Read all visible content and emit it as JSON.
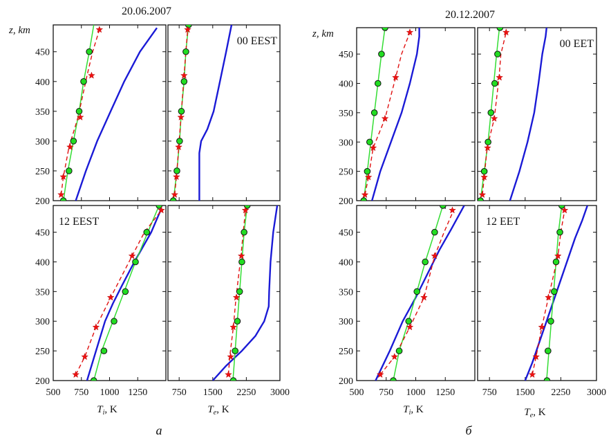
{
  "figure": {
    "left_title": "20.06.2007",
    "right_title": "20.12.2007",
    "left_label": "а",
    "right_label": "б",
    "y_axis_label": "z, km",
    "ti_label": "T",
    "ti_sub": "i",
    "te_label": "T",
    "te_sub": "e",
    "unit": ", K"
  },
  "colors": {
    "blue_curve": "#1a1ad6",
    "green_line": "#33dd33",
    "green_marker_fill": "#22dd22",
    "red_dashed": "#e01010",
    "red_star": "#ee1111"
  },
  "chart_data": [
    {
      "id": "a_ti_00",
      "type": "line",
      "panel_label": "",
      "xlim": [
        500,
        1500
      ],
      "ylim": [
        200,
        495
      ],
      "y_ticks": [
        200,
        250,
        300,
        350,
        400,
        450
      ],
      "x_ticks": [],
      "show_y_ticks": true,
      "series": [
        {
          "kind": "blue",
          "x": [
            700,
            790,
            890,
            1010,
            1130,
            1270,
            1420
          ],
          "y": [
            200,
            250,
            300,
            350,
            400,
            450,
            490
          ]
        },
        {
          "kind": "green",
          "x": [
            590,
            630,
            680,
            730,
            770,
            820,
            860
          ],
          "y": [
            200,
            250,
            300,
            350,
            400,
            450,
            495
          ]
        },
        {
          "kind": "red",
          "x": [
            570,
            590,
            640,
            720,
            800,
            850,
            910
          ],
          "y": [
            210,
            240,
            290,
            340,
            410,
            450,
            487
          ]
        },
        {
          "kind": "markers",
          "x": [
            590,
            640,
            680,
            730,
            770,
            820
          ],
          "y": [
            200,
            250,
            300,
            350,
            400,
            450
          ]
        },
        {
          "kind": "stars",
          "x": [
            570,
            590,
            650,
            740,
            840,
            910
          ],
          "y": [
            210,
            240,
            290,
            340,
            410,
            487
          ]
        }
      ]
    },
    {
      "id": "a_te_00",
      "type": "line",
      "panel_label": "00 EEST",
      "xlim": [
        500,
        3000
      ],
      "ylim": [
        200,
        495
      ],
      "y_ticks": [
        200,
        250,
        300,
        350,
        400,
        450
      ],
      "x_ticks": [],
      "show_y_ticks": false,
      "series": [
        {
          "kind": "blue",
          "x": [
            1200,
            1200,
            1200,
            1200,
            1240,
            1380,
            1520,
            1660,
            1800,
            1920
          ],
          "y": [
            200,
            230,
            260,
            280,
            300,
            320,
            350,
            400,
            450,
            495
          ]
        },
        {
          "kind": "green",
          "x": [
            620,
            700,
            760,
            800,
            860,
            900,
            960
          ],
          "y": [
            200,
            250,
            300,
            350,
            400,
            450,
            495
          ]
        },
        {
          "kind": "red",
          "x": [
            650,
            690,
            740,
            790,
            860,
            900,
            940
          ],
          "y": [
            210,
            240,
            290,
            340,
            410,
            450,
            487
          ]
        },
        {
          "kind": "markers",
          "x": [
            620,
            700,
            760,
            800,
            860,
            900,
            960
          ],
          "y": [
            200,
            250,
            300,
            350,
            400,
            450,
            495
          ]
        },
        {
          "kind": "stars",
          "x": [
            650,
            690,
            740,
            790,
            860,
            940
          ],
          "y": [
            210,
            240,
            290,
            340,
            410,
            487
          ]
        }
      ]
    },
    {
      "id": "a_ti_12",
      "type": "line",
      "panel_label": "12 EEST",
      "xlim": [
        500,
        1500
      ],
      "ylim": [
        200,
        495
      ],
      "y_ticks": [
        200,
        250,
        300,
        350,
        400,
        450
      ],
      "x_ticks": [
        500,
        750,
        1000,
        1250
      ],
      "show_y_ticks": true,
      "series": [
        {
          "kind": "blue",
          "x": [
            800,
            880,
            960,
            1030,
            1110,
            1220,
            1370,
            1460
          ],
          "y": [
            200,
            250,
            300,
            330,
            360,
            400,
            450,
            490
          ]
        },
        {
          "kind": "green",
          "x": [
            860,
            930,
            1030,
            1130,
            1230,
            1340,
            1440
          ],
          "y": [
            200,
            250,
            300,
            350,
            400,
            450,
            495
          ]
        },
        {
          "kind": "red",
          "x": [
            700,
            780,
            880,
            1010,
            1200,
            1310,
            1460
          ],
          "y": [
            210,
            240,
            290,
            340,
            410,
            450,
            487
          ]
        },
        {
          "kind": "markers",
          "x": [
            860,
            950,
            1040,
            1140,
            1230,
            1330,
            1440
          ],
          "y": [
            200,
            250,
            300,
            350,
            400,
            450,
            495
          ]
        },
        {
          "kind": "stars",
          "x": [
            700,
            780,
            880,
            1010,
            1200,
            1460
          ],
          "y": [
            210,
            240,
            290,
            340,
            410,
            487
          ]
        }
      ]
    },
    {
      "id": "a_te_12",
      "type": "line",
      "panel_label": "",
      "xlim": [
        500,
        3000
      ],
      "ylim": [
        200,
        495
      ],
      "y_ticks": [
        200,
        250,
        300,
        350,
        400,
        450
      ],
      "x_ticks": [
        750,
        1500,
        2250,
        3000
      ],
      "show_y_ticks": false,
      "series": [
        {
          "kind": "blue",
          "x": [
            1500,
            1800,
            2150,
            2450,
            2650,
            2750,
            2760,
            2790,
            2850,
            2940
          ],
          "y": [
            200,
            225,
            250,
            275,
            300,
            325,
            350,
            400,
            450,
            495
          ]
        },
        {
          "kind": "green",
          "x": [
            1950,
            2000,
            2050,
            2100,
            2150,
            2200,
            2270
          ],
          "y": [
            200,
            250,
            300,
            350,
            400,
            450,
            495
          ]
        },
        {
          "kind": "red",
          "x": [
            1850,
            1880,
            1960,
            2020,
            2130,
            2180,
            2230
          ],
          "y": [
            210,
            240,
            290,
            340,
            410,
            450,
            487
          ]
        },
        {
          "kind": "markers",
          "x": [
            1960,
            2000,
            2050,
            2100,
            2150,
            2200,
            2270
          ],
          "y": [
            200,
            250,
            300,
            350,
            400,
            450,
            495
          ]
        },
        {
          "kind": "stars",
          "x": [
            1850,
            1900,
            1960,
            2030,
            2140,
            2230
          ],
          "y": [
            210,
            240,
            290,
            340,
            410,
            487
          ]
        }
      ]
    },
    {
      "id": "b_ti_00",
      "type": "line",
      "panel_label": "",
      "xlim": [
        500,
        1500
      ],
      "ylim": [
        200,
        495
      ],
      "y_ticks": [
        200,
        250,
        300,
        350,
        400,
        450
      ],
      "x_ticks": [],
      "show_y_ticks": true,
      "series": [
        {
          "kind": "blue",
          "x": [
            630,
            700,
            790,
            880,
            950,
            1010,
            1030,
            1030
          ],
          "y": [
            200,
            250,
            300,
            350,
            400,
            450,
            480,
            495
          ]
        },
        {
          "kind": "green",
          "x": [
            560,
            590,
            620,
            650,
            680,
            710,
            740
          ],
          "y": [
            200,
            250,
            300,
            350,
            400,
            450,
            495
          ]
        },
        {
          "kind": "red",
          "x": [
            570,
            600,
            640,
            740,
            830,
            880,
            950
          ],
          "y": [
            210,
            240,
            290,
            340,
            410,
            450,
            487
          ]
        },
        {
          "kind": "markers",
          "x": [
            560,
            590,
            610,
            650,
            680,
            710,
            740
          ],
          "y": [
            200,
            250,
            300,
            350,
            400,
            450,
            495
          ]
        },
        {
          "kind": "stars",
          "x": [
            570,
            600,
            640,
            740,
            830,
            950
          ],
          "y": [
            210,
            240,
            290,
            340,
            410,
            487
          ]
        }
      ]
    },
    {
      "id": "b_te_00",
      "type": "line",
      "panel_label": "00 EET",
      "xlim": [
        500,
        3000
      ],
      "ylim": [
        200,
        495
      ],
      "y_ticks": [
        200,
        250,
        300,
        350,
        400,
        450
      ],
      "x_ticks": [],
      "show_y_ticks": false,
      "series": [
        {
          "kind": "blue",
          "x": [
            1180,
            1380,
            1550,
            1690,
            1780,
            1860,
            1930,
            1950
          ],
          "y": [
            200,
            250,
            300,
            350,
            400,
            450,
            480,
            495
          ]
        },
        {
          "kind": "green",
          "x": [
            560,
            640,
            720,
            780,
            840,
            900,
            960
          ],
          "y": [
            200,
            250,
            300,
            350,
            400,
            450,
            495
          ]
        },
        {
          "kind": "red",
          "x": [
            600,
            640,
            700,
            850,
            950,
            990,
            1100
          ],
          "y": [
            210,
            240,
            290,
            340,
            410,
            450,
            487
          ]
        },
        {
          "kind": "markers",
          "x": [
            560,
            640,
            720,
            780,
            860,
            920,
            970
          ],
          "y": [
            200,
            250,
            300,
            350,
            400,
            450,
            495
          ]
        },
        {
          "kind": "stars",
          "x": [
            600,
            640,
            710,
            850,
            960,
            1100
          ],
          "y": [
            210,
            240,
            290,
            340,
            410,
            487
          ]
        }
      ]
    },
    {
      "id": "b_ti_12",
      "type": "line",
      "panel_label": "",
      "xlim": [
        500,
        1500
      ],
      "ylim": [
        200,
        495
      ],
      "y_ticks": [
        200,
        250,
        300,
        350,
        400,
        450
      ],
      "x_ticks": [
        500,
        750,
        1000,
        1250
      ],
      "show_y_ticks": true,
      "series": [
        {
          "kind": "blue",
          "x": [
            660,
            780,
            890,
            1000,
            1100,
            1200,
            1300,
            1410
          ],
          "y": [
            200,
            250,
            300,
            340,
            380,
            420,
            455,
            495
          ]
        },
        {
          "kind": "green",
          "x": [
            810,
            860,
            940,
            1010,
            1080,
            1160,
            1230
          ],
          "y": [
            200,
            250,
            300,
            350,
            400,
            450,
            495
          ]
        },
        {
          "kind": "red",
          "x": [
            700,
            820,
            950,
            1070,
            1160,
            1240,
            1320
          ],
          "y": [
            210,
            240,
            290,
            340,
            410,
            450,
            487
          ]
        },
        {
          "kind": "markers",
          "x": [
            810,
            860,
            940,
            1010,
            1080,
            1160,
            1230
          ],
          "y": [
            200,
            250,
            300,
            350,
            400,
            450,
            495
          ]
        },
        {
          "kind": "stars",
          "x": [
            700,
            820,
            950,
            1070,
            1160,
            1310
          ],
          "y": [
            210,
            240,
            290,
            340,
            410,
            487
          ]
        }
      ]
    },
    {
      "id": "b_te_12",
      "type": "line",
      "panel_label": "12 EET",
      "xlim": [
        500,
        3000
      ],
      "ylim": [
        200,
        495
      ],
      "y_ticks": [
        200,
        250,
        300,
        350,
        400,
        450
      ],
      "x_ticks": [
        750,
        1500,
        2250,
        3000
      ],
      "show_y_ticks": false,
      "series": [
        {
          "kind": "blue",
          "x": [
            1500,
            1650,
            1800,
            1950,
            2100,
            2250,
            2400,
            2550,
            2700,
            2810
          ],
          "y": [
            200,
            230,
            265,
            300,
            335,
            370,
            405,
            440,
            470,
            495
          ]
        },
        {
          "kind": "green",
          "x": [
            1950,
            2000,
            2050,
            2100,
            2150,
            2200,
            2270
          ],
          "y": [
            200,
            250,
            300,
            350,
            400,
            450,
            495
          ]
        },
        {
          "kind": "red",
          "x": [
            1650,
            1730,
            1850,
            1990,
            2190,
            2250,
            2330
          ],
          "y": [
            210,
            240,
            290,
            340,
            410,
            450,
            487
          ]
        },
        {
          "kind": "markers",
          "x": [
            1960,
            1980,
            2040,
            2110,
            2150,
            2230,
            2270
          ],
          "y": [
            200,
            250,
            300,
            350,
            400,
            450,
            495
          ]
        },
        {
          "kind": "stars",
          "x": [
            1650,
            1730,
            1850,
            1990,
            2190,
            2330
          ],
          "y": [
            210,
            240,
            290,
            340,
            410,
            487
          ]
        }
      ]
    }
  ]
}
